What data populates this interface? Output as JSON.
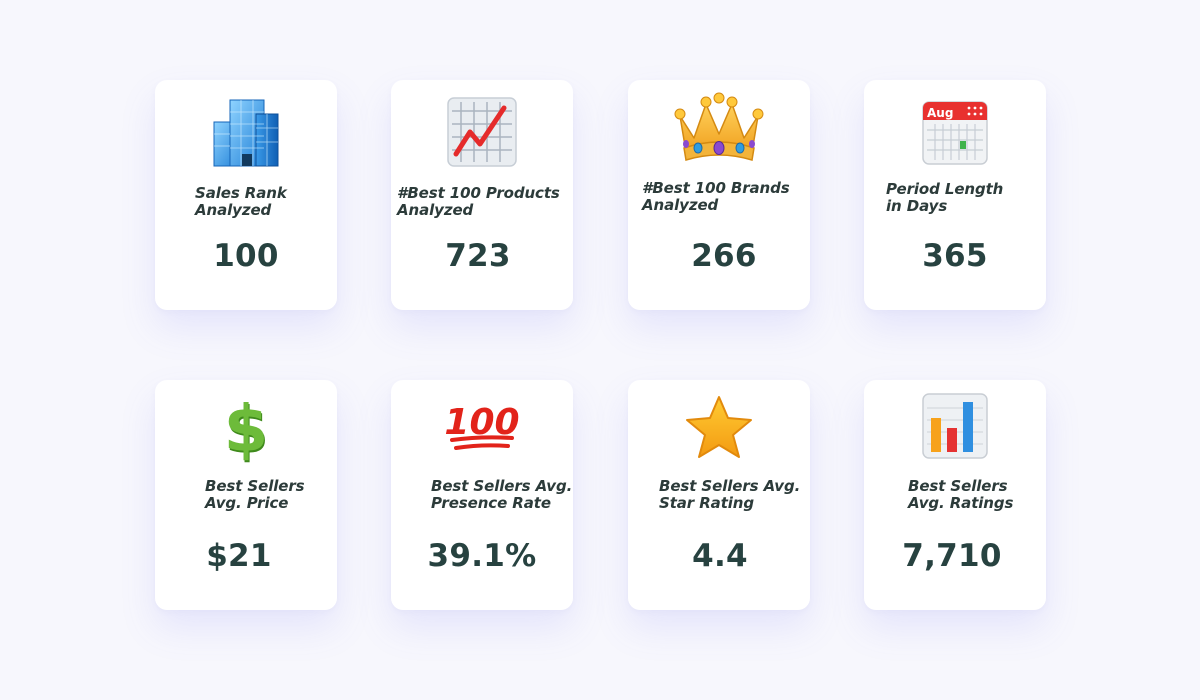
{
  "cards": [
    {
      "label": "Sales Rank\nAnalyzed",
      "value": "100",
      "icon": "office-building-icon"
    },
    {
      "label": "#Best 100 Products\nAnalyzed",
      "value": "723",
      "icon": "chart-increasing-icon"
    },
    {
      "label": "#Best 100 Brands\nAnalyzed",
      "value": "266",
      "icon": "crown-icon"
    },
    {
      "label": "Period Length\nin Days",
      "value": "365",
      "icon": "calendar-icon",
      "calendar_month": "Aug"
    },
    {
      "label": "Best Sellers\nAvg. Price",
      "value": "$21",
      "icon": "dollar-sign-icon"
    },
    {
      "label": "Best Sellers Avg.\nPresence Rate",
      "value": "39.1%",
      "icon": "hundred-points-icon"
    },
    {
      "label": "Best Sellers Avg.\nStar Rating",
      "value": "4.4",
      "icon": "star-icon"
    },
    {
      "label": "Best Sellers\nAvg. Ratings",
      "value": "7,710",
      "icon": "bar-chart-icon"
    }
  ],
  "colors": {
    "background": "#f7f7fd",
    "card": "#ffffff",
    "text": "#2c3b3a",
    "value": "#274240"
  }
}
